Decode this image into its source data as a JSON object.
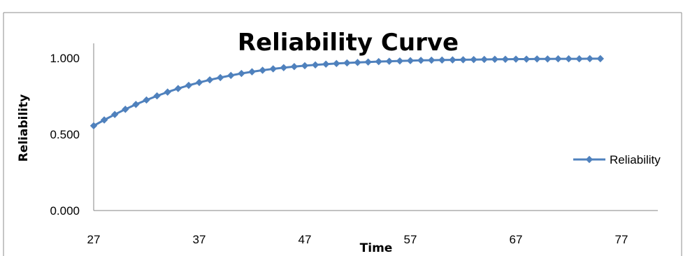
{
  "chart_data": {
    "type": "line",
    "title": "Reliability Curve",
    "xlabel": "Time",
    "ylabel": "Reliability",
    "xlim": [
      27,
      77
    ],
    "ylim": [
      0,
      1
    ],
    "x_ticks": [
      "27",
      "37",
      "47",
      "57",
      "67",
      "77"
    ],
    "y_ticks": [
      "0.000",
      "0.500",
      "1.000"
    ],
    "grid": false,
    "legend_position": "right",
    "series_color": "#4f81bd",
    "series": [
      {
        "name": "Reliability",
        "x": [
          27,
          28,
          29,
          30,
          31,
          32,
          33,
          34,
          35,
          36,
          37,
          38,
          39,
          40,
          41,
          42,
          43,
          44,
          45,
          46,
          47,
          48,
          49,
          50,
          51,
          52,
          53,
          54,
          55,
          56,
          57,
          58,
          59,
          60,
          61,
          62,
          63,
          64,
          65,
          66,
          67,
          68,
          69,
          70,
          71,
          72,
          73,
          74,
          75
        ],
        "values": [
          0.556,
          0.594,
          0.63,
          0.664,
          0.696,
          0.725,
          0.752,
          0.777,
          0.8,
          0.821,
          0.84,
          0.857,
          0.872,
          0.886,
          0.899,
          0.91,
          0.92,
          0.929,
          0.937,
          0.944,
          0.95,
          0.955,
          0.96,
          0.964,
          0.968,
          0.971,
          0.974,
          0.977,
          0.979,
          0.981,
          0.983,
          0.985,
          0.986,
          0.987,
          0.988,
          0.989,
          0.99,
          0.991,
          0.992,
          0.992,
          0.993,
          0.993,
          0.994,
          0.994,
          0.995,
          0.995,
          0.995,
          0.996,
          0.996
        ]
      }
    ]
  }
}
